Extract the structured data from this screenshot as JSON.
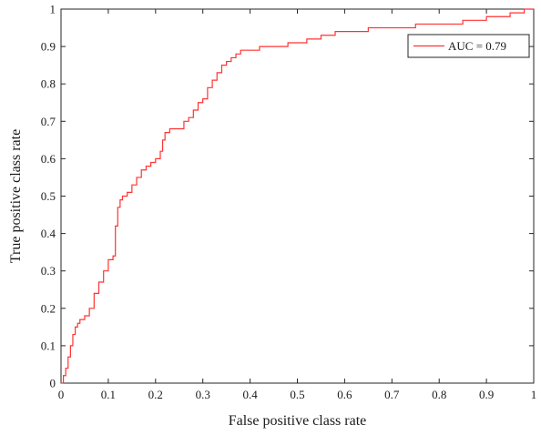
{
  "chart_data": {
    "type": "line",
    "xlabel": "False positive class rate",
    "ylabel": "True positive class rate",
    "xlim": [
      0,
      1
    ],
    "ylim": [
      0,
      1
    ],
    "xticks": [
      "0",
      "0.1",
      "0.2",
      "0.3",
      "0.4",
      "0.5",
      "0.6",
      "0.7",
      "0.8",
      "0.9",
      "1"
    ],
    "yticks": [
      "0",
      "0.1",
      "0.2",
      "0.3",
      "0.4",
      "0.5",
      "0.6",
      "0.7",
      "0.8",
      "0.9",
      "1"
    ],
    "grid": false,
    "legend": {
      "position": "top-right",
      "entries": [
        "AUC = 0.79"
      ]
    },
    "series": [
      {
        "name": "AUC = 0.79",
        "color": "#ff3333",
        "x": [
          0,
          0.005,
          0.01,
          0.015,
          0.02,
          0.025,
          0.03,
          0.035,
          0.04,
          0.05,
          0.06,
          0.07,
          0.08,
          0.09,
          0.1,
          0.11,
          0.115,
          0.12,
          0.125,
          0.13,
          0.14,
          0.15,
          0.16,
          0.17,
          0.18,
          0.19,
          0.2,
          0.21,
          0.215,
          0.22,
          0.23,
          0.24,
          0.25,
          0.26,
          0.27,
          0.28,
          0.29,
          0.3,
          0.31,
          0.32,
          0.33,
          0.34,
          0.35,
          0.36,
          0.37,
          0.38,
          0.39,
          0.4,
          0.42,
          0.45,
          0.48,
          0.5,
          0.52,
          0.55,
          0.58,
          0.6,
          0.65,
          0.7,
          0.75,
          0.8,
          0.85,
          0.9,
          0.95,
          0.98,
          1.0
        ],
        "y": [
          0,
          0.02,
          0.04,
          0.07,
          0.1,
          0.13,
          0.15,
          0.16,
          0.17,
          0.18,
          0.2,
          0.24,
          0.27,
          0.3,
          0.33,
          0.34,
          0.42,
          0.47,
          0.49,
          0.5,
          0.51,
          0.53,
          0.55,
          0.57,
          0.58,
          0.59,
          0.6,
          0.62,
          0.65,
          0.67,
          0.68,
          0.68,
          0.68,
          0.7,
          0.71,
          0.73,
          0.75,
          0.76,
          0.79,
          0.81,
          0.83,
          0.85,
          0.86,
          0.87,
          0.88,
          0.89,
          0.89,
          0.89,
          0.9,
          0.9,
          0.91,
          0.91,
          0.92,
          0.93,
          0.94,
          0.94,
          0.95,
          0.95,
          0.96,
          0.96,
          0.97,
          0.98,
          0.99,
          1.0,
          1.0
        ]
      }
    ]
  }
}
